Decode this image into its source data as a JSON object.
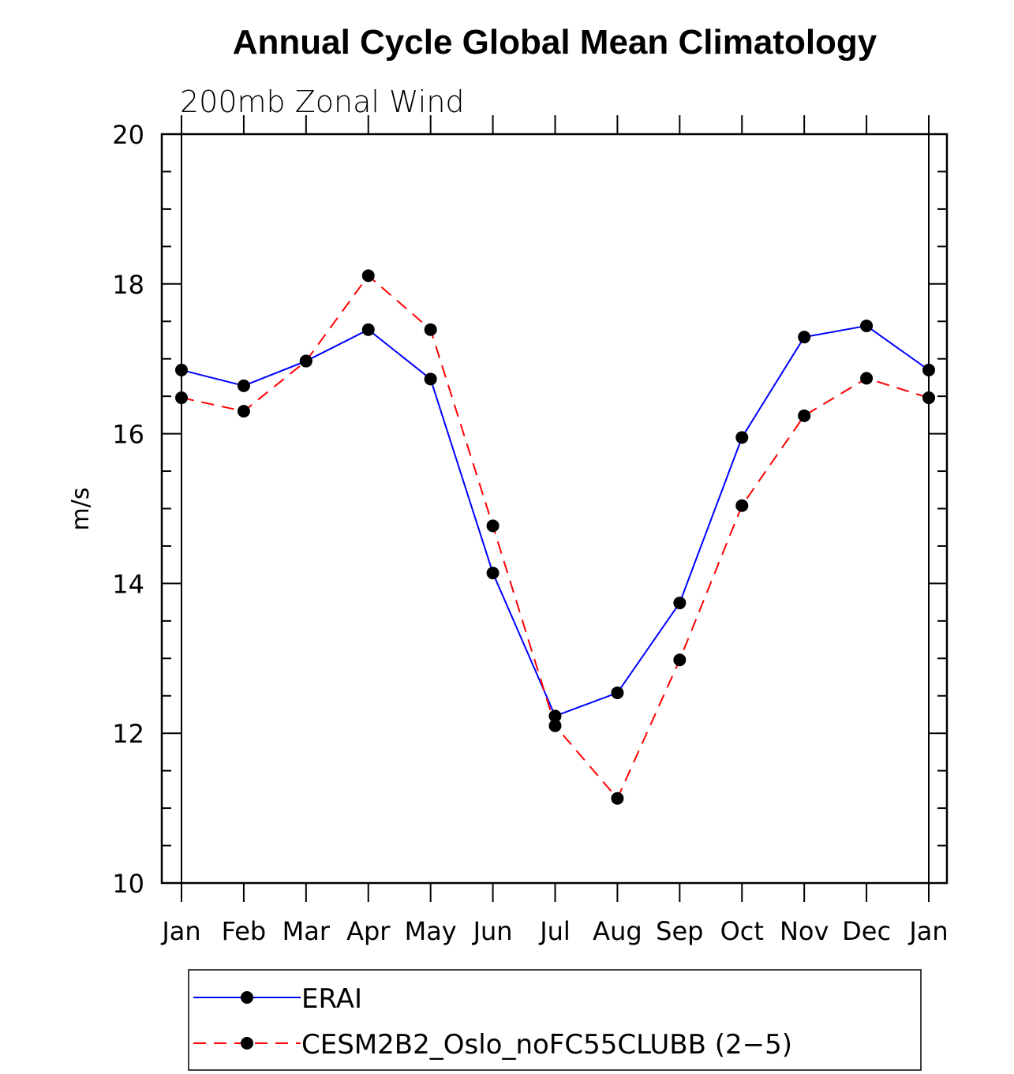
{
  "chart_data": {
    "type": "line",
    "title": "Annual Cycle Global Mean Climatology",
    "subtitle": "200mb Zonal Wind",
    "xlabel": "",
    "ylabel": "m/s",
    "categories": [
      "Jan",
      "Feb",
      "Mar",
      "Apr",
      "May",
      "Jun",
      "Jul",
      "Aug",
      "Sep",
      "Oct",
      "Nov",
      "Dec",
      "Jan"
    ],
    "ylim": [
      10,
      20
    ],
    "yticks": [
      10,
      12,
      14,
      16,
      18,
      20
    ],
    "yticks_minor_step": 0.5,
    "grid": false,
    "legend_position": "bottom",
    "series": [
      {
        "name": "ERAI",
        "color": "#0000ff",
        "dash": "solid",
        "marker": "circle",
        "values": [
          16.85,
          16.64,
          16.97,
          17.39,
          16.73,
          14.14,
          12.23,
          12.54,
          13.74,
          15.95,
          17.29,
          17.44,
          16.85
        ]
      },
      {
        "name": "CESM2B2_Oslo_noFC55CLUBB (2−5)",
        "color": "#ff0000",
        "dash": "dashed",
        "marker": "circle",
        "values": [
          16.48,
          16.3,
          16.97,
          18.11,
          17.39,
          14.77,
          12.1,
          11.13,
          12.98,
          15.04,
          16.24,
          16.74,
          16.48
        ]
      }
    ]
  }
}
